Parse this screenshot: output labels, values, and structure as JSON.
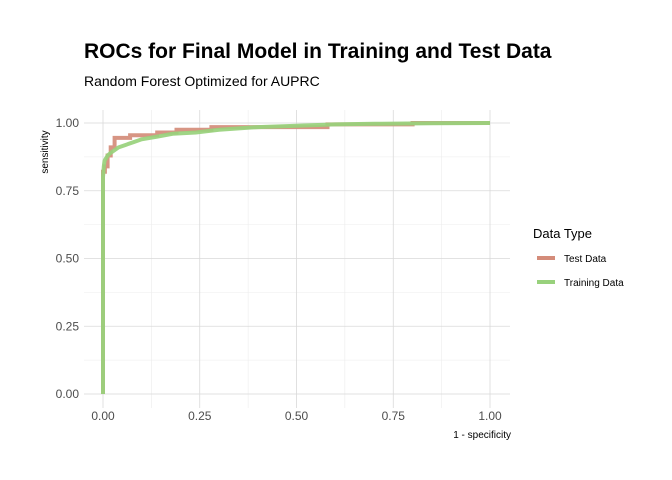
{
  "chart_data": {
    "type": "line",
    "title": "ROCs for Final Model in Training and Test Data",
    "subtitle": "Random Forest Optimized for AUPRC",
    "xlabel": "1 - specificity",
    "ylabel": "sensitivity",
    "xlim": [
      0,
      1
    ],
    "ylim": [
      0,
      1
    ],
    "x_ticks": [
      "0.00",
      "0.25",
      "0.50",
      "0.75",
      "1.00"
    ],
    "y_ticks": [
      "0.00",
      "0.25",
      "0.50",
      "0.75",
      "1.00"
    ],
    "grid": true,
    "legend": {
      "title": "Data Type",
      "position": "right"
    },
    "series": [
      {
        "name": "Test Data",
        "color": "#d48c7a",
        "x": [
          0.0,
          0.0,
          0.005,
          0.005,
          0.012,
          0.012,
          0.02,
          0.02,
          0.03,
          0.03,
          0.07,
          0.07,
          0.14,
          0.14,
          0.19,
          0.19,
          0.28,
          0.28,
          0.58,
          0.58,
          0.8,
          0.8,
          1.0
        ],
        "y": [
          0.0,
          0.82,
          0.82,
          0.84,
          0.84,
          0.88,
          0.88,
          0.91,
          0.91,
          0.945,
          0.945,
          0.955,
          0.955,
          0.965,
          0.965,
          0.975,
          0.975,
          0.985,
          0.985,
          0.995,
          0.995,
          1.0,
          1.0
        ]
      },
      {
        "name": "Training Data",
        "color": "#98d17c",
        "x": [
          0.0,
          0.0,
          0.002,
          0.004,
          0.008,
          0.012,
          0.02,
          0.03,
          0.04,
          0.06,
          0.08,
          0.1,
          0.14,
          0.18,
          0.24,
          0.3,
          0.4,
          0.5,
          0.6,
          0.7,
          0.85,
          1.0
        ],
        "y": [
          0.0,
          0.8,
          0.84,
          0.86,
          0.87,
          0.88,
          0.89,
          0.9,
          0.91,
          0.92,
          0.93,
          0.94,
          0.95,
          0.96,
          0.965,
          0.975,
          0.985,
          0.99,
          0.995,
          0.997,
          0.999,
          1.0
        ]
      }
    ]
  }
}
